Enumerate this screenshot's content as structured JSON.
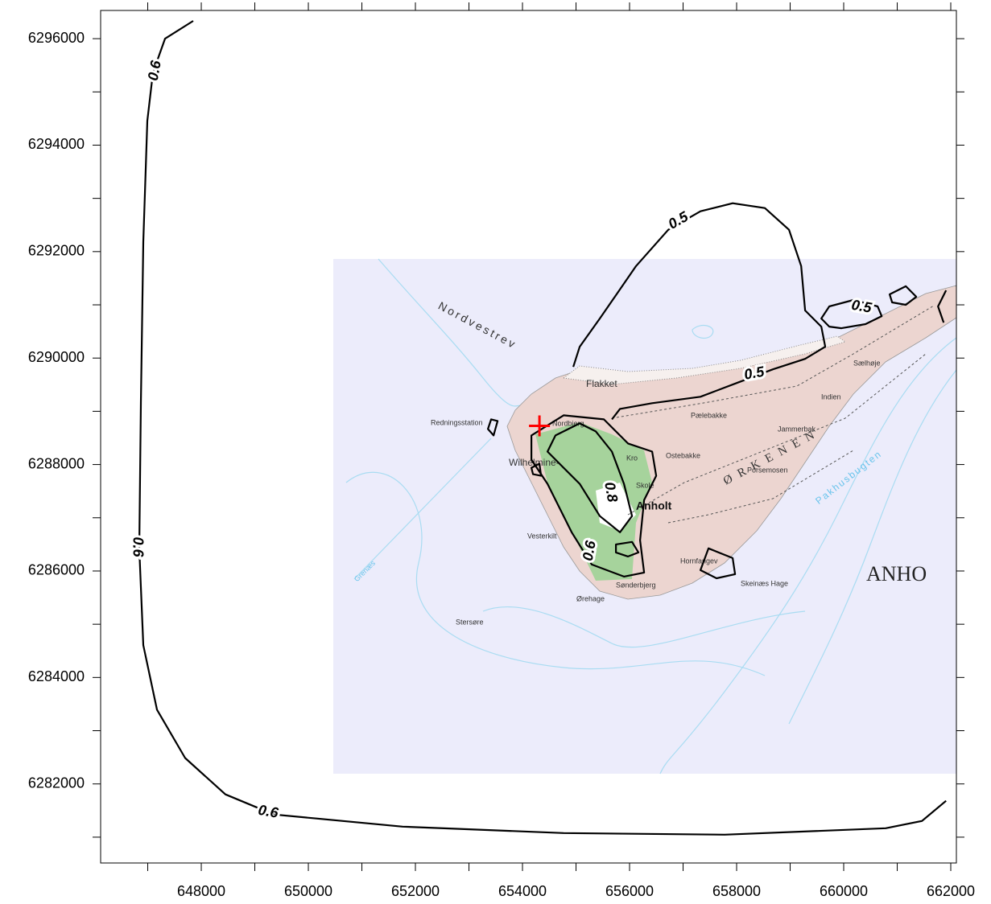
{
  "chart_data": {
    "type": "contour",
    "xlim": [
      646120,
      662105
    ],
    "ylim": [
      6280515,
      6296530
    ],
    "xticks": [
      648000,
      650000,
      652000,
      654000,
      656000,
      658000,
      660000,
      662000
    ],
    "xminorticks": [
      647000,
      649000,
      651000,
      653000,
      655000,
      657000,
      659000,
      661000
    ],
    "yticks": [
      6282000,
      6284000,
      6286000,
      6288000,
      6290000,
      6292000,
      6294000,
      6296000
    ],
    "yminorticks": [
      6281000,
      6283000,
      6285000,
      6287000,
      6289000,
      6291000,
      6293000,
      6295000
    ],
    "line_color": "#000000",
    "contours": [
      {
        "level": 0.6,
        "x": [
          647850,
          647323,
          647098,
          646992,
          646917,
          646872,
          646842,
          646917,
          647173,
          647699,
          648451,
          649354,
          651760,
          654768,
          657776,
          660784,
          661461,
          661912
        ],
        "y": [
          6296333,
          6296000,
          6295364,
          6294455,
          6292182,
          6289152,
          6286425,
          6284607,
          6283395,
          6282486,
          6281804,
          6281426,
          6281198,
          6281077,
          6281047,
          6281168,
          6281304,
          6281683
        ]
      },
      {
        "level": 0.5,
        "x": [
          654948,
          655069,
          655445,
          656122,
          656723,
          657325,
          657926,
          658528,
          658979,
          659205,
          659280,
          659581,
          659656,
          659280,
          658678,
          658002,
          657325,
          656422,
          655821,
          655670
        ],
        "y": [
          6289834,
          6290213,
          6290743,
          6291728,
          6292410,
          6292758,
          6292909,
          6292818,
          6292410,
          6291728,
          6290894,
          6290591,
          6290213,
          6289985,
          6289788,
          6289531,
          6289273,
          6289152,
          6289046,
          6288849
        ]
      },
      {
        "level": 0.5,
        "x": [
          659581,
          659731,
          660182,
          660634,
          660709,
          660408,
          659957,
          659731
        ],
        "y": [
          6290743,
          6290970,
          6291091,
          6290970,
          6290788,
          6290637,
          6290561,
          6290591
        ]
      },
      {
        "level": 0.8,
        "x": [
          654617,
          655069,
          655370,
          655670,
          655896,
          656047,
          655821,
          655445,
          655069,
          654768,
          654467
        ],
        "y": [
          6288546,
          6288773,
          6288622,
          6288243,
          6287637,
          6287031,
          6286728,
          6287031,
          6287637,
          6287940,
          6288243
        ]
      },
      {
        "level": 0.6,
        "x": [
          654166,
          654768,
          655520,
          655971,
          656422,
          656497,
          656272,
          656197,
          656272,
          655896,
          655294,
          654918,
          654467,
          654166
        ],
        "y": [
          6288546,
          6288925,
          6288849,
          6288395,
          6288243,
          6287788,
          6287334,
          6286576,
          6285970,
          6285895,
          6286122,
          6286728,
          6287637,
          6288092
        ]
      },
      {
        "x": [
          660859,
          661160,
          661356,
          661160,
          660905
        ],
        "y": [
          6291197,
          6291349,
          6291152,
          6291000,
          6291046
        ]
      },
      {
        "x": [
          661912,
          661762,
          661867
        ],
        "y": [
          6291273,
          6290970,
          6290667
        ]
      },
      {
        "x": [
          657475,
          657926,
          657971,
          657625,
          657325
        ],
        "y": [
          6286425,
          6286243,
          6285940,
          6285864,
          6286016
        ]
      },
      {
        "x": [
          655745,
          656047,
          656167,
          655971,
          655745
        ],
        "y": [
          6286500,
          6286546,
          6286349,
          6286273,
          6286349
        ]
      },
      {
        "x": [
          654166,
          654317,
          654347,
          654196
        ],
        "y": [
          6287940,
          6288016,
          6287788,
          6287819
        ]
      },
      {
        "x": [
          653415,
          653535,
          653460,
          653355
        ],
        "y": [
          6288849,
          6288819,
          6288546,
          6288667
        ]
      }
    ],
    "marker": {
      "x": 654317,
      "y": 6288727,
      "color": "#ff0000"
    }
  },
  "map_labels": [
    "Nordvestrev",
    "Flakket",
    "Redningsstation",
    "Nordbjerg",
    "Wilhelmine-",
    "Vesterkilt",
    "Ørehage",
    "Stersøre",
    "Sønderbjerg",
    "Anholt",
    "Skole",
    "Kro",
    "Ostebakke",
    "Pælebakke",
    "ØRKENEN",
    "Porsemosen",
    "Jammerbak",
    "Indien",
    "Sælhøje",
    "Hornfangev",
    "Skeinæs Hage",
    "Pakhusbugten",
    "ANHO",
    "Grenæs"
  ]
}
